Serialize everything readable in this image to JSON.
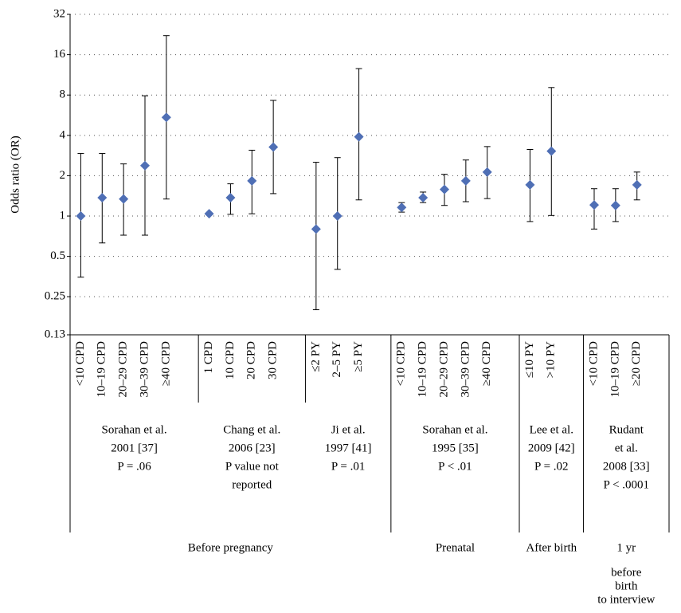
{
  "chart_data": {
    "type": "scatter",
    "y_label": "Odds ratio (OR)",
    "y_scale": "log",
    "ylim": [
      0.13,
      32
    ],
    "yticks": [
      0.13,
      0.25,
      0.5,
      1,
      2,
      4,
      8,
      16,
      32
    ],
    "grid": true,
    "periods": [
      {
        "label": [
          "Before pregnancy"
        ],
        "studies": [
          {
            "lines": [
              "Sorahan et al.",
              "2001 [37]",
              "P = .06"
            ],
            "categories": [
              "<10 CPD",
              "10–19 CPD",
              "20–29 CPD",
              "30–39 CPD",
              "≥40 CPD"
            ]
          },
          {
            "lines": [
              "Chang et al.",
              "2006 [23]",
              "P value not",
              "reported"
            ],
            "categories": [
              "1 CPD",
              "10 CPD",
              "20 CPD",
              "30 CPD"
            ]
          },
          {
            "lines": [
              "Ji et al.",
              "1997 [41]",
              "P = .01"
            ],
            "categories": [
              "≤2 PY",
              "2–5 PY",
              "≥5 PY"
            ]
          }
        ]
      },
      {
        "label": [
          "Prenatal"
        ],
        "studies": [
          {
            "lines": [
              "Sorahan et al.",
              "1995 [35]",
              "P < .01"
            ],
            "categories": [
              "<10 CPD",
              "10–19 CPD",
              "20–29 CPD",
              "30–39 CPD",
              "≥40 CPD"
            ]
          }
        ]
      },
      {
        "label": [
          "After birth"
        ],
        "studies": [
          {
            "lines": [
              "Lee et al.",
              "2009 [42]",
              "P = .02"
            ],
            "categories": [
              "≤10 PY",
              ">10 PY"
            ]
          }
        ]
      },
      {
        "label": [
          "1 yr",
          "before",
          "birth",
          "to interview"
        ],
        "studies": [
          {
            "lines": [
              "Rudant",
              "et al.",
              "2008 [33]",
              "P < .0001"
            ],
            "categories": [
              "<10 CPD",
              "10–19 CPD",
              "≥20 CPD"
            ]
          }
        ]
      }
    ],
    "series": [
      {
        "color": "#4f6fb5",
        "values": [
          1.0,
          1.37,
          1.34,
          2.38,
          5.45,
          1.04,
          1.37,
          1.83,
          3.27,
          0.8,
          1.0,
          3.9,
          1.16,
          1.37,
          1.58,
          1.83,
          2.13,
          1.71,
          3.05,
          1.21,
          1.2,
          1.71
        ],
        "lower": [
          0.35,
          0.63,
          0.72,
          0.72,
          1.34,
          null,
          1.03,
          1.04,
          1.47,
          0.2,
          0.4,
          1.32,
          1.07,
          1.26,
          1.2,
          1.28,
          1.35,
          0.91,
          1.01,
          0.8,
          0.91,
          1.32
        ],
        "upper": [
          2.93,
          2.93,
          2.45,
          7.9,
          22.2,
          null,
          1.74,
          3.1,
          7.3,
          2.52,
          2.73,
          12.6,
          1.26,
          1.51,
          2.05,
          2.62,
          3.3,
          3.14,
          9.1,
          1.6,
          1.6,
          2.13
        ]
      }
    ]
  }
}
